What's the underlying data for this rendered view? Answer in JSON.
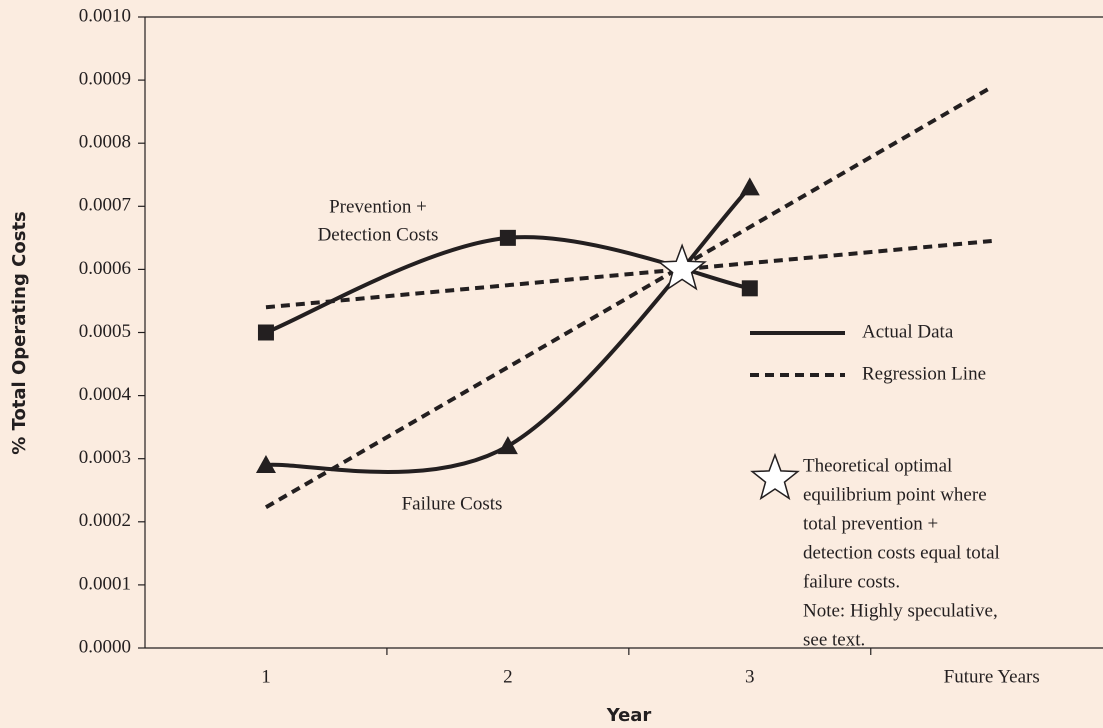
{
  "chart_data": {
    "type": "line",
    "y_label": "% Total Operating Costs",
    "x_label": "Year",
    "xlim": [
      0.5,
      4.46
    ],
    "xticks": [
      1,
      2,
      3,
      {
        "value": 4,
        "label": "Future Years"
      }
    ],
    "xminorticks": [
      1.5,
      2.5,
      3.5
    ],
    "ylim": [
      0,
      0.001
    ],
    "yticks": [
      {
        "value": 0,
        "label": "0.0000"
      },
      {
        "value": 0.0001,
        "label": "0.0001"
      },
      {
        "value": 0.0002,
        "label": "0.0002"
      },
      {
        "value": 0.0003,
        "label": "0.0003"
      },
      {
        "value": 0.0004,
        "label": "0.0004"
      },
      {
        "value": 0.0005,
        "label": "0.0005"
      },
      {
        "value": 0.0006,
        "label": "0.0006"
      },
      {
        "value": 0.0007,
        "label": "0.0007"
      },
      {
        "value": 0.0008,
        "label": "0.0008"
      },
      {
        "value": 0.0009,
        "label": "0.0009"
      },
      {
        "value": 0.001,
        "label": "0.0010"
      }
    ],
    "color": "#231f20",
    "background": "#fbece0",
    "series": [
      {
        "style": "actual",
        "marker": "square",
        "label": [
          "Prevention +",
          "Detection Costs"
        ],
        "x": [
          1,
          2,
          3
        ],
        "values": [
          0.0005,
          0.00065,
          0.00057
        ]
      },
      {
        "style": "actual",
        "marker": "triangle",
        "label": [
          "Failure Costs"
        ],
        "x": [
          1,
          2,
          3
        ],
        "values": [
          0.00029,
          0.00032,
          0.00073
        ]
      },
      {
        "style": "regression",
        "x": [
          1,
          4
        ],
        "values": [
          0.00054,
          0.000645
        ]
      },
      {
        "style": "regression",
        "x": [
          1,
          4
        ],
        "values": [
          0.000223,
          0.000889
        ]
      }
    ],
    "equilibrium": {
      "x": 2.72,
      "y": 0.0006
    },
    "legend": {
      "entries": [
        {
          "style": "actual",
          "lines": [
            "Actual Data"
          ]
        },
        {
          "style": "regression",
          "lines": [
            "Regression Line"
          ]
        },
        {
          "marker": "star",
          "lines": [
            "Theoretical optimal",
            "equilibrium point where",
            "total prevention +",
            "detection costs equal total",
            "failure costs.",
            "Note: Highly speculative,",
            "see text."
          ]
        }
      ]
    }
  }
}
